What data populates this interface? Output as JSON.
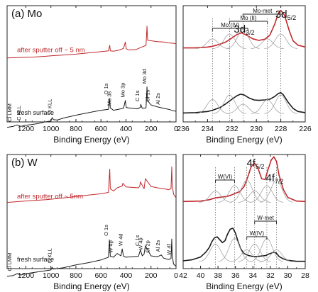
{
  "chart_data": [
    {
      "type": "line",
      "panel": "(a) Mo",
      "title": "(a) Mo",
      "xlabel": "Binding Energy (eV)",
      "xlim": [
        1350,
        0
      ],
      "xticks": [
        1200,
        1000,
        800,
        600,
        400,
        200,
        0
      ],
      "series": [
        {
          "name": "after sputter off ~ 5 nm",
          "color": "#c0282b",
          "x": [
            1350,
            1250,
            1150,
            1040,
            1000,
            900,
            800,
            700,
            600,
            540,
            530,
            525,
            500,
            450,
            420,
            405,
            398,
            380,
            320,
            290,
            240,
            232,
            228,
            225,
            200,
            150,
            100,
            60,
            20,
            0
          ],
          "y": [
            0.14,
            0.15,
            0.16,
            0.18,
            0.19,
            0.21,
            0.23,
            0.26,
            0.29,
            0.31,
            0.44,
            0.31,
            0.3,
            0.33,
            0.37,
            0.52,
            0.36,
            0.33,
            0.34,
            0.38,
            0.44,
            0.9,
            0.62,
            0.56,
            0.55,
            0.53,
            0.52,
            0.5,
            0.49,
            0.48
          ]
        },
        {
          "name": "fresh surface",
          "color": "#1a1a1a",
          "x": [
            1350,
            1300,
            1270,
            1240,
            1210,
            1150,
            1100,
            1050,
            1000,
            990,
            980,
            950,
            900,
            800,
            700,
            600,
            540,
            532,
            525,
            500,
            420,
            405,
            398,
            380,
            350,
            310,
            285,
            282,
            270,
            240,
            232,
            228,
            200,
            150,
            100,
            60,
            20,
            0
          ],
          "y": [
            -0.35,
            -0.33,
            -0.3,
            -0.33,
            -0.31,
            -0.29,
            -0.27,
            -0.24,
            -0.22,
            -0.15,
            -0.19,
            -0.2,
            -0.16,
            -0.1,
            -0.05,
            0.0,
            0.02,
            0.24,
            0.05,
            0.0,
            0.04,
            0.2,
            0.06,
            0.05,
            0.04,
            0.03,
            0.06,
            0.12,
            0.04,
            0.05,
            0.48,
            0.2,
            0.11,
            0.07,
            0.04,
            0.02,
            -0.01,
            -0.02
          ]
        }
      ],
      "annotations": [
        {
          "text": "Cl LMM",
          "x": 1305,
          "y": -0.28
        },
        {
          "text": "C KLL",
          "x": 1230,
          "y": -0.25
        },
        {
          "text": "O KLL",
          "x": 985,
          "y": -0.12
        },
        {
          "text": "O 1s",
          "x": 532,
          "y": 0.28
        },
        {
          "text": "Mo 3s",
          "x": 508,
          "y": 0.05
        },
        {
          "text": "Mo 3p",
          "x": 400,
          "y": 0.22
        },
        {
          "text": "C 1s",
          "x": 285,
          "y": 0.14
        },
        {
          "text": "Mo 3d",
          "x": 228,
          "y": 0.5
        },
        {
          "text": "Cl 1s",
          "x": 200,
          "y": 0.13
        },
        {
          "text": "Al 2s",
          "x": 118,
          "y": 0.07
        }
      ],
      "legend": "none"
    },
    {
      "type": "line",
      "panel": "Mo 3d",
      "xlabel": "Binding Energy (eV)",
      "xlim": [
        236,
        226
      ],
      "xticks": [
        236,
        234,
        232,
        230,
        228,
        226
      ],
      "peak_labels": [
        {
          "text": "3d",
          "sub": "5/2",
          "x": 227.6
        },
        {
          "text": "3d",
          "sub": "3/2",
          "x": 231.0
        }
      ],
      "brackets": [
        {
          "text": "Mo-met",
          "from": 231.1,
          "to": 227.9
        },
        {
          "text": "Mo (II)",
          "from": 232.2,
          "to": 229.1
        },
        {
          "text": "Mo (IV)",
          "from": 233.6,
          "to": 230.7
        }
      ],
      "dotted_lines": [
        233.6,
        232.2,
        231.1,
        229.1,
        228.0
      ],
      "series": [
        {
          "name": "after sputter off ~ 5 nm",
          "color": "#c0282b",
          "x": [
            236,
            235,
            234,
            233.6,
            233,
            232.5,
            232,
            231.6,
            231.2,
            230.8,
            230.3,
            229.8,
            229.3,
            228.9,
            228.5,
            228.2,
            228,
            227.7,
            227.3,
            227,
            226.6,
            226
          ],
          "y": [
            0.02,
            0.02,
            0.04,
            0.06,
            0.11,
            0.17,
            0.27,
            0.36,
            0.4,
            0.34,
            0.25,
            0.21,
            0.24,
            0.34,
            0.62,
            0.9,
            0.97,
            0.85,
            0.45,
            0.2,
            0.09,
            0.04
          ]
        },
        {
          "name": "fresh surface",
          "color": "#1a1a1a",
          "x": [
            236,
            235,
            234,
            233.6,
            233,
            232.5,
            232,
            231.6,
            231.3,
            231,
            230.6,
            230.2,
            229.8,
            229.3,
            228.9,
            228.5,
            228.2,
            228,
            227.8,
            227.4,
            227,
            226.6,
            226
          ],
          "y": [
            0.02,
            0.03,
            0.06,
            0.09,
            0.16,
            0.26,
            0.38,
            0.47,
            0.51,
            0.49,
            0.41,
            0.36,
            0.35,
            0.36,
            0.38,
            0.45,
            0.53,
            0.55,
            0.5,
            0.3,
            0.14,
            0.06,
            0.03
          ]
        }
      ],
      "legend": "none"
    },
    {
      "type": "line",
      "panel": "(b) W",
      "title": "(b) W",
      "xlabel": "Binding Energy (eV)",
      "xlim": [
        1350,
        0
      ],
      "xticks": [
        1200,
        1000,
        800,
        600,
        400,
        200,
        0
      ],
      "series": [
        {
          "name": "after sputter off ~ 5nm",
          "color": "#c0282b",
          "x": [
            1350,
            1250,
            1150,
            1040,
            1000,
            900,
            800,
            700,
            600,
            540,
            530,
            525,
            500,
            470,
            430,
            425,
            400,
            300,
            290,
            285,
            255,
            245,
            200,
            150,
            100,
            60,
            40,
            34,
            31,
            20,
            0
          ],
          "y": [
            0.2,
            0.22,
            0.24,
            0.26,
            0.27,
            0.3,
            0.33,
            0.36,
            0.39,
            0.42,
            0.93,
            0.5,
            0.45,
            0.52,
            0.56,
            0.62,
            0.54,
            0.52,
            0.56,
            0.65,
            0.5,
            0.72,
            0.55,
            0.52,
            0.5,
            0.48,
            0.5,
            0.98,
            0.6,
            0.38,
            0.3
          ]
        },
        {
          "name": "fresh surface",
          "color": "#1a1a1a",
          "x": [
            1350,
            1300,
            1270,
            1240,
            1200,
            1100,
            1050,
            1000,
            990,
            980,
            950,
            900,
            800,
            700,
            600,
            560,
            540,
            532,
            525,
            500,
            470,
            440,
            430,
            420,
            400,
            300,
            285,
            270,
            255,
            245,
            200,
            150,
            118,
            100,
            60,
            40,
            34,
            31,
            20,
            0
          ],
          "y": [
            -0.42,
            -0.4,
            -0.36,
            -0.39,
            -0.36,
            -0.32,
            -0.3,
            -0.28,
            -0.22,
            -0.26,
            -0.25,
            -0.23,
            -0.17,
            -0.12,
            -0.06,
            -0.02,
            0.0,
            0.38,
            0.02,
            0.0,
            0.08,
            0.03,
            0.18,
            0.02,
            0.0,
            0.02,
            0.16,
            0.03,
            0.07,
            0.25,
            0.03,
            0.01,
            0.05,
            -0.02,
            -0.05,
            -0.03,
            0.4,
            0.05,
            -0.15,
            -0.2
          ]
        }
      ],
      "annotations": [
        {
          "text": "Cl LMM",
          "x": 1305,
          "y": -0.35
        },
        {
          "text": "O KLL",
          "x": 985,
          "y": -0.18
        },
        {
          "text": "O 1s",
          "x": 532,
          "y": 0.42
        },
        {
          "text": "W 4p",
          "x": 495,
          "y": 0.05
        },
        {
          "text": "W 4d",
          "x": 418,
          "y": 0.2
        },
        {
          "text": "C 1s",
          "x": 285,
          "y": 0.2
        },
        {
          "text": "W 4p",
          "x": 258,
          "y": 0.11
        },
        {
          "text": "Cl 2p",
          "x": 200,
          "y": 0.05
        },
        {
          "text": "Al 2s",
          "x": 118,
          "y": 0.07
        },
        {
          "text": "W 4f",
          "x": 31,
          "y": 0.0
        }
      ],
      "legend": "none"
    },
    {
      "type": "line",
      "panel": "W 4f",
      "xlabel": "Binding Energy (eV)",
      "xlim": [
        42,
        28
      ],
      "xticks": [
        42,
        40,
        38,
        36,
        34,
        32,
        30,
        28
      ],
      "peak_labels": [
        {
          "text": "4f",
          "sub": "5/2",
          "x": 33.7
        },
        {
          "text": "4f",
          "sub": "7/2",
          "x": 31.5
        }
      ],
      "brackets": [
        {
          "text": "W(VI)",
          "from": 38.3,
          "to": 36.1
        },
        {
          "text": "W-met",
          "from": 33.8,
          "to": 31.3
        },
        {
          "text": "W(IV)",
          "from": 34.7,
          "to": 32.4
        }
      ],
      "dotted_lines": [
        38.3,
        36.1,
        34.7,
        33.8,
        32.4,
        31.3
      ],
      "series": [
        {
          "name": "after sputter off ~ 5nm",
          "color": "#c0282b",
          "x": [
            42,
            40,
            39,
            38.3,
            37.5,
            37,
            36.5,
            36,
            35.5,
            35,
            34.6,
            34.2,
            33.8,
            33.4,
            33,
            32.6,
            32.3,
            31.9,
            31.6,
            31.3,
            31,
            30.5,
            30,
            29,
            28
          ],
          "y": [
            0.02,
            0.03,
            0.06,
            0.1,
            0.12,
            0.13,
            0.16,
            0.2,
            0.24,
            0.35,
            0.55,
            0.78,
            0.86,
            0.74,
            0.52,
            0.5,
            0.7,
            0.93,
            1.0,
            0.9,
            0.6,
            0.28,
            0.11,
            0.03,
            0.02
          ]
        },
        {
          "name": "fresh surface",
          "color": "#1a1a1a",
          "x": [
            42,
            41,
            40,
            39.4,
            39,
            38.7,
            38.4,
            38.1,
            37.8,
            37.5,
            37.2,
            36.9,
            36.6,
            36.3,
            36,
            35.7,
            35.4,
            35,
            34.5,
            34,
            33.5,
            33,
            32.5,
            32.2,
            31.9,
            31.6,
            31.3,
            31,
            30.5,
            30,
            29,
            28
          ],
          "y": [
            0.02,
            0.04,
            0.1,
            0.2,
            0.3,
            0.42,
            0.5,
            0.52,
            0.46,
            0.4,
            0.44,
            0.58,
            0.68,
            0.7,
            0.6,
            0.42,
            0.27,
            0.17,
            0.13,
            0.11,
            0.11,
            0.12,
            0.13,
            0.16,
            0.18,
            0.2,
            0.18,
            0.11,
            0.06,
            0.03,
            0.01,
            0.01
          ]
        }
      ],
      "legend": "none"
    }
  ],
  "panels": {
    "a_title": "(a) Mo",
    "b_title": "(b) W",
    "xlabel": "Binding Energy (eV)",
    "label_sputter_a": "after sputter off ~ 5 nm",
    "label_sputter_b": "after sputter off ~ 5nm",
    "label_fresh": "fresh surface"
  }
}
